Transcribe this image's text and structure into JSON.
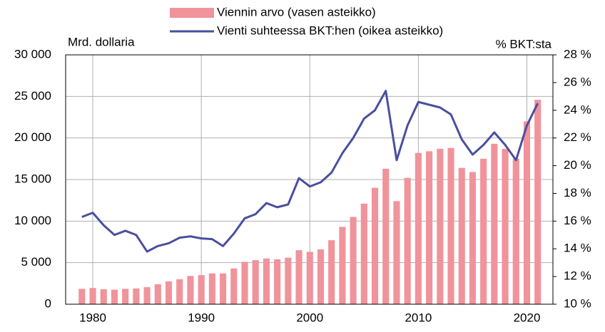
{
  "chart_data": {
    "type": "bar_line",
    "y_label": "Mrd. dollaria",
    "y2_label": "% BKT:sta",
    "x": [
      1979,
      1980,
      1981,
      1982,
      1983,
      1984,
      1985,
      1986,
      1987,
      1988,
      1989,
      1990,
      1991,
      1992,
      1993,
      1994,
      1995,
      1996,
      1997,
      1998,
      1999,
      2000,
      2001,
      2002,
      2003,
      2004,
      2005,
      2006,
      2007,
      2008,
      2009,
      2010,
      2011,
      2012,
      2013,
      2014,
      2015,
      2016,
      2017,
      2018,
      2019,
      2020,
      2021
    ],
    "series": [
      {
        "name": "Viennin arvo (vasen asteikko)",
        "color": "#f0939b",
        "kind": "bar",
        "values": [
          1850,
          1950,
          1800,
          1750,
          1850,
          1900,
          2050,
          2400,
          2750,
          3000,
          3400,
          3500,
          3700,
          3700,
          4300,
          5100,
          5300,
          5500,
          5400,
          5600,
          6500,
          6300,
          6600,
          7700,
          9300,
          10500,
          12100,
          14000,
          16300,
          12400,
          15200,
          18200,
          18400,
          18700,
          18800,
          16400,
          15900,
          17500,
          19300,
          18700,
          17500,
          22000,
          24600
        ]
      },
      {
        "name": "Vienti suhteessa BKT:hen (oikea asteikko)",
        "color": "#4a4f9e",
        "kind": "line",
        "axis": "y2",
        "values": [
          16.3,
          16.6,
          15.7,
          15.0,
          15.3,
          15.0,
          13.8,
          14.2,
          14.4,
          14.8,
          14.9,
          14.75,
          14.7,
          14.2,
          15.1,
          16.2,
          16.5,
          17.3,
          17.0,
          17.2,
          19.1,
          18.5,
          18.8,
          19.5,
          20.9,
          22.0,
          23.4,
          24.0,
          25.4,
          20.4,
          22.9,
          24.6,
          24.4,
          24.2,
          23.7,
          21.9,
          20.8,
          21.5,
          22.4,
          21.5,
          20.4,
          22.9,
          24.5
        ]
      }
    ],
    "xlim": [
      1977.5,
      2022.4
    ],
    "xticks": [
      1980,
      1990,
      2000,
      2010,
      2020
    ],
    "ylim": [
      0,
      30000
    ],
    "yticks": [
      {
        "value": 0,
        "label": "0"
      },
      {
        "value": 5000,
        "label": "5 000"
      },
      {
        "value": 10000,
        "label": "10 000"
      },
      {
        "value": 15000,
        "label": "15 000"
      },
      {
        "value": 20000,
        "label": "20 000"
      },
      {
        "value": 25000,
        "label": "25 000"
      },
      {
        "value": 30000,
        "label": "30 000"
      }
    ],
    "y2lim": [
      10,
      28
    ],
    "y2ticks": [
      {
        "value": 10,
        "label": "10 %"
      },
      {
        "value": 12,
        "label": "12 %"
      },
      {
        "value": 14,
        "label": "14 %"
      },
      {
        "value": 16,
        "label": "16 %"
      },
      {
        "value": 18,
        "label": "18 %"
      },
      {
        "value": 20,
        "label": "20 %"
      },
      {
        "value": 22,
        "label": "22 %"
      },
      {
        "value": 24,
        "label": "24 %"
      },
      {
        "value": 26,
        "label": "26 %"
      },
      {
        "value": 28,
        "label": "28 %"
      }
    ],
    "grid": true,
    "legend": "top"
  }
}
